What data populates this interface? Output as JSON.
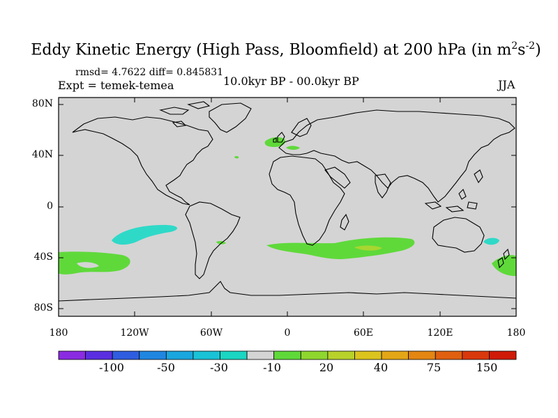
{
  "title": {
    "main": "Eddy Kinetic Energy (High Pass, Bloomfield) at 200 hPa (in m",
    "sup1": "2",
    "mid": "s",
    "sup2": "-2",
    "end": ")"
  },
  "stats": "rmsd= 4.7622  diff= 0.845831",
  "experiment": "Expt = temek-temea",
  "comparison": "10.0kyr BP - 00.0kyr BP",
  "season": "JJA",
  "map": {
    "y_ticks": [
      "80N",
      "40N",
      "0",
      "40S",
      "80S"
    ],
    "x_ticks": [
      "180",
      "120W",
      "60W",
      "0",
      "60E",
      "120E",
      "180"
    ],
    "background_color": "#d4d4d4",
    "anomaly_colors": {
      "positive_low": "#5fd93a",
      "positive_mid": "#a8d630",
      "negative_low": "#2fd9c8"
    }
  },
  "colorbar": {
    "colors": [
      "#8a2be2",
      "#5a2ee0",
      "#2f5de0",
      "#1f86e0",
      "#1aa6de",
      "#1ac2d6",
      "#1ad6c2",
      "#d4d4d4",
      "#5fd93a",
      "#8fd62f",
      "#b8d22a",
      "#dcc41e",
      "#e3a617",
      "#e38612",
      "#e0600f",
      "#d9380c",
      "#d01a08"
    ],
    "labels": [
      "-100",
      "-50",
      "-30",
      "-10",
      "20",
      "40",
      "75",
      "150"
    ]
  }
}
